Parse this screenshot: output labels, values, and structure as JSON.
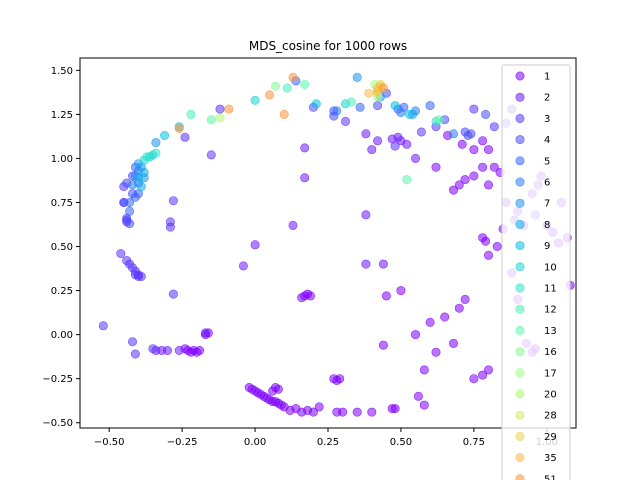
{
  "chart_data": {
    "type": "scatter",
    "title": "MDS_cosine for 1000 rows",
    "xlabel": "",
    "ylabel": "",
    "xlim": [
      -0.6,
      1.1
    ],
    "ylim": [
      -0.53,
      1.57
    ],
    "xticks": [
      -0.5,
      -0.25,
      0.0,
      0.25,
      0.5,
      0.75,
      1.0
    ],
    "xtick_labels": [
      "−0.50",
      "−0.25",
      "0.00",
      "0.25",
      "0.50",
      "0.75",
      "1.00"
    ],
    "yticks": [
      -0.5,
      -0.25,
      0.0,
      0.25,
      0.5,
      0.75,
      1.0,
      1.25,
      1.5
    ],
    "ytick_labels": [
      "−0.50",
      "−0.25",
      "0.00",
      "0.25",
      "0.50",
      "0.75",
      "1.00",
      "1.25",
      "1.50"
    ],
    "grid": false,
    "legend_position": "right",
    "series": [
      {
        "name": "1",
        "color": "#8000ff",
        "points": [
          [
            -0.02,
            -0.3
          ],
          [
            -0.01,
            -0.31
          ],
          [
            0.0,
            -0.32
          ],
          [
            0.01,
            -0.33
          ],
          [
            0.02,
            -0.34
          ],
          [
            0.03,
            -0.35
          ],
          [
            0.04,
            -0.36
          ],
          [
            0.05,
            -0.37
          ],
          [
            0.06,
            -0.38
          ],
          [
            0.07,
            -0.38
          ],
          [
            0.08,
            -0.39
          ],
          [
            0.09,
            -0.4
          ],
          [
            0.1,
            -0.41
          ],
          [
            0.12,
            -0.43
          ],
          [
            0.14,
            -0.42
          ],
          [
            0.16,
            -0.44
          ],
          [
            0.18,
            -0.43
          ],
          [
            0.2,
            -0.44
          ],
          [
            0.22,
            -0.41
          ],
          [
            0.28,
            -0.44
          ],
          [
            0.3,
            -0.44
          ],
          [
            0.35,
            -0.44
          ],
          [
            0.4,
            -0.44
          ],
          [
            0.47,
            -0.42
          ],
          [
            0.48,
            -0.42
          ],
          [
            0.27,
            -0.25
          ],
          [
            0.28,
            -0.26
          ],
          [
            0.29,
            -0.25
          ],
          [
            0.07,
            -0.3
          ],
          [
            0.08,
            -0.31
          ],
          [
            0.06,
            -0.32
          ],
          [
            0.16,
            0.21
          ],
          [
            0.17,
            0.22
          ],
          [
            0.18,
            0.23
          ],
          [
            0.19,
            0.22
          ],
          [
            -0.23,
            -0.09
          ],
          [
            -0.22,
            -0.1
          ],
          [
            -0.21,
            -0.09
          ],
          [
            -0.2,
            -0.1
          ],
          [
            -0.24,
            -0.08
          ],
          [
            -0.19,
            -0.09
          ],
          [
            -0.17,
            0.0
          ],
          [
            -0.16,
            0.01
          ],
          [
            0.78,
            0.55
          ],
          [
            0.79,
            0.53
          ],
          [
            0.8,
            0.45
          ],
          [
            0.83,
            0.5
          ],
          [
            0.85,
            0.6
          ],
          [
            0.88,
            0.35
          ],
          [
            0.9,
            0.2
          ],
          [
            0.92,
            0.62
          ],
          [
            0.93,
            -0.05
          ],
          [
            0.95,
            -0.1
          ],
          [
            0.96,
            -0.08
          ],
          [
            0.98,
            0.9
          ],
          [
            1.0,
            0.62
          ],
          [
            1.02,
            0.58
          ],
          [
            1.05,
            0.75
          ],
          [
            1.04,
            0.52
          ],
          [
            1.07,
            0.55
          ],
          [
            1.08,
            0.28
          ],
          [
            0.75,
            -0.25
          ],
          [
            0.78,
            -0.23
          ],
          [
            0.8,
            -0.2
          ],
          [
            0.72,
            0.2
          ],
          [
            0.7,
            0.15
          ],
          [
            0.65,
            0.1
          ],
          [
            0.6,
            0.07
          ],
          [
            0.55,
            0.0
          ],
          [
            0.5,
            0.25
          ],
          [
            0.45,
            0.22
          ],
          [
            0.58,
            -0.2
          ],
          [
            0.62,
            -0.1
          ],
          [
            0.68,
            -0.05
          ],
          [
            0.44,
            -0.06
          ],
          [
            0.58,
            -0.4
          ],
          [
            0.56,
            -0.35
          ],
          [
            0.7,
            0.85
          ],
          [
            0.72,
            0.88
          ],
          [
            0.75,
            0.9
          ],
          [
            0.78,
            0.95
          ],
          [
            0.8,
            0.85
          ],
          [
            0.82,
            0.95
          ],
          [
            0.84,
            0.92
          ],
          [
            0.86,
            0.75
          ],
          [
            0.9,
            0.7
          ],
          [
            0.68,
            0.82
          ],
          [
            0.75,
            1.05
          ],
          [
            0.71,
            1.08
          ],
          [
            0.78,
            1.1
          ],
          [
            0.8,
            1.05
          ],
          [
            0.66,
            1.13
          ],
          [
            0.62,
            0.95
          ]
        ]
      },
      {
        "name": "2",
        "color": "#6e1aff",
        "points": [
          [
            0.47,
            1.11
          ],
          [
            0.49,
            1.12
          ],
          [
            0.5,
            1.1
          ],
          [
            0.52,
            1.08
          ],
          [
            0.42,
            1.1
          ],
          [
            0.38,
            1.14
          ],
          [
            0.4,
            1.05
          ],
          [
            0.55,
            1.0
          ],
          [
            0.38,
            0.68
          ],
          [
            0.38,
            0.4
          ],
          [
            0.44,
            0.4
          ],
          [
            0.17,
            0.89
          ],
          [
            0.17,
            1.06
          ],
          [
            0.13,
            0.62
          ],
          [
            0.0,
            0.51
          ],
          [
            -0.04,
            0.39
          ],
          [
            -0.17,
            0.01
          ],
          [
            -0.26,
            -0.09
          ],
          [
            -0.3,
            -0.09
          ],
          [
            -0.32,
            -0.09
          ],
          [
            -0.34,
            -0.09
          ],
          [
            0.95,
            0.8
          ],
          [
            0.97,
            0.85
          ],
          [
            0.89,
            0.65
          ],
          [
            0.96,
            0.68
          ]
        ]
      },
      {
        "name": "3",
        "color": "#5b34fe",
        "points": [
          [
            -0.52,
            0.05
          ],
          [
            -0.46,
            0.46
          ],
          [
            -0.44,
            0.42
          ],
          [
            -0.43,
            0.4
          ],
          [
            -0.42,
            0.38
          ],
          [
            -0.41,
            0.36
          ],
          [
            -0.41,
            0.34
          ],
          [
            -0.4,
            0.33
          ],
          [
            -0.4,
            0.34
          ],
          [
            -0.39,
            0.33
          ],
          [
            -0.42,
            -0.04
          ],
          [
            -0.41,
            -0.11
          ],
          [
            -0.35,
            -0.08
          ],
          [
            -0.29,
            0.64
          ],
          [
            -0.29,
            0.61
          ],
          [
            -0.28,
            0.23
          ],
          [
            -0.28,
            0.76
          ],
          [
            -0.15,
            1.02
          ],
          [
            -0.24,
            1.12
          ],
          [
            -0.12,
            1.28
          ],
          [
            0.88,
            1.28
          ],
          [
            0.86,
            1.2
          ],
          [
            0.82,
            1.18
          ],
          [
            0.75,
            1.28
          ],
          [
            0.62,
            1.18
          ],
          [
            0.57,
            1.15
          ],
          [
            0.48,
            1.07
          ],
          [
            0.31,
            1.21
          ],
          [
            -0.45,
            0.75
          ],
          [
            -0.45,
            0.84
          ],
          [
            -0.44,
            0.66
          ],
          [
            -0.44,
            0.64
          ]
        ]
      },
      {
        "name": "4",
        "color": "#4a4cfe",
        "points": [
          [
            -0.45,
            0.75
          ],
          [
            -0.44,
            0.65
          ],
          [
            -0.43,
            0.63
          ],
          [
            -0.44,
            0.86
          ],
          [
            -0.42,
            0.9
          ],
          [
            -0.42,
            0.8
          ],
          [
            0.45,
            1.37
          ],
          [
            0.42,
            1.3
          ],
          [
            0.65,
            1.22
          ],
          [
            0.72,
            1.15
          ],
          [
            0.73,
            1.13
          ],
          [
            0.74,
            1.14
          ],
          [
            0.27,
            1.27
          ],
          [
            0.27,
            1.24
          ],
          [
            0.2,
            1.29
          ],
          [
            0.79,
            1.25
          ]
        ]
      },
      {
        "name": "5",
        "color": "#3564fd",
        "points": [
          [
            -0.43,
            0.75
          ],
          [
            -0.43,
            0.7
          ],
          [
            -0.41,
            0.95
          ],
          [
            -0.41,
            0.78
          ],
          [
            -0.4,
            0.8
          ],
          [
            0.14,
            1.44
          ],
          [
            0.36,
            1.29
          ],
          [
            0.49,
            1.28
          ],
          [
            0.51,
            1.29
          ],
          [
            0.6,
            1.3
          ]
        ]
      },
      {
        "name": "6",
        "color": "#2a7cfa",
        "points": [
          [
            -0.42,
            0.85
          ],
          [
            -0.41,
            0.9
          ],
          [
            -0.4,
            0.93
          ],
          [
            -0.4,
            0.86
          ],
          [
            0.28,
            1.27
          ],
          [
            0.55,
            1.27
          ],
          [
            0.5,
            1.26
          ],
          [
            0.68,
            1.14
          ]
        ]
      },
      {
        "name": "7",
        "color": "#1996f3",
        "points": [
          [
            -0.4,
            0.97
          ],
          [
            -0.39,
            0.95
          ],
          [
            -0.38,
            0.89
          ],
          [
            -0.34,
            1.09
          ],
          [
            0.35,
            1.46
          ],
          [
            0.43,
            1.35
          ],
          [
            0.54,
            1.25
          ]
        ]
      },
      {
        "name": "8",
        "color": "#0aabeb",
        "points": [
          [
            -0.39,
            0.84
          ],
          [
            -0.38,
            0.92
          ],
          [
            -0.4,
            0.89
          ]
        ]
      },
      {
        "name": "9",
        "color": "#05c0e2",
        "points": [
          [
            -0.31,
            1.13
          ],
          [
            -0.26,
            1.18
          ],
          [
            0.21,
            1.31
          ],
          [
            0.53,
            1.25
          ],
          [
            0.48,
            1.3
          ]
        ]
      },
      {
        "name": "10",
        "color": "#19d2d6",
        "points": [
          [
            -0.38,
            0.99
          ],
          [
            -0.36,
            1.01
          ],
          [
            -0.35,
            1.02
          ],
          [
            0.0,
            1.33
          ],
          [
            0.31,
            1.31
          ]
        ]
      },
      {
        "name": "11",
        "color": "#2ee3c9",
        "points": [
          [
            -0.37,
            1.01
          ],
          [
            -0.34,
            1.03
          ],
          [
            0.62,
            1.21
          ]
        ]
      },
      {
        "name": "12",
        "color": "#46efbb",
        "points": [
          [
            -0.22,
            1.25
          ],
          [
            0.11,
            1.4
          ],
          [
            0.33,
            1.32
          ]
        ]
      },
      {
        "name": "13",
        "color": "#5bf8ab",
        "points": [
          [
            -0.15,
            1.22
          ],
          [
            0.52,
            0.88
          ],
          [
            0.63,
            1.22
          ],
          [
            0.17,
            1.42
          ]
        ]
      },
      {
        "name": "16",
        "color": "#82fe93",
        "points": [
          [
            0.07,
            1.41
          ]
        ]
      },
      {
        "name": "17",
        "color": "#9cfe83",
        "points": [
          [
            0.41,
            1.42
          ],
          [
            0.42,
            1.38
          ]
        ]
      },
      {
        "name": "20",
        "color": "#b2f773",
        "points": [
          [
            -0.12,
            1.23
          ],
          [
            0.42,
            1.35
          ]
        ]
      },
      {
        "name": "28",
        "color": "#cce965",
        "points": [
          [
            0.43,
            1.4
          ],
          [
            0.42,
            1.37
          ]
        ]
      },
      {
        "name": "29",
        "color": "#e4d457",
        "points": [
          [
            0.43,
            1.42
          ],
          [
            0.43,
            1.41
          ]
        ]
      },
      {
        "name": "35",
        "color": "#fbba48",
        "points": [
          [
            0.42,
            1.38
          ],
          [
            0.39,
            1.37
          ],
          [
            0.42,
            1.4
          ]
        ]
      },
      {
        "name": "51",
        "color": "#ff9238",
        "points": [
          [
            -0.26,
            1.17
          ],
          [
            -0.09,
            1.28
          ],
          [
            0.1,
            1.25
          ],
          [
            0.13,
            1.46
          ],
          [
            0.05,
            1.36
          ],
          [
            0.44,
            1.4
          ]
        ]
      }
    ]
  }
}
